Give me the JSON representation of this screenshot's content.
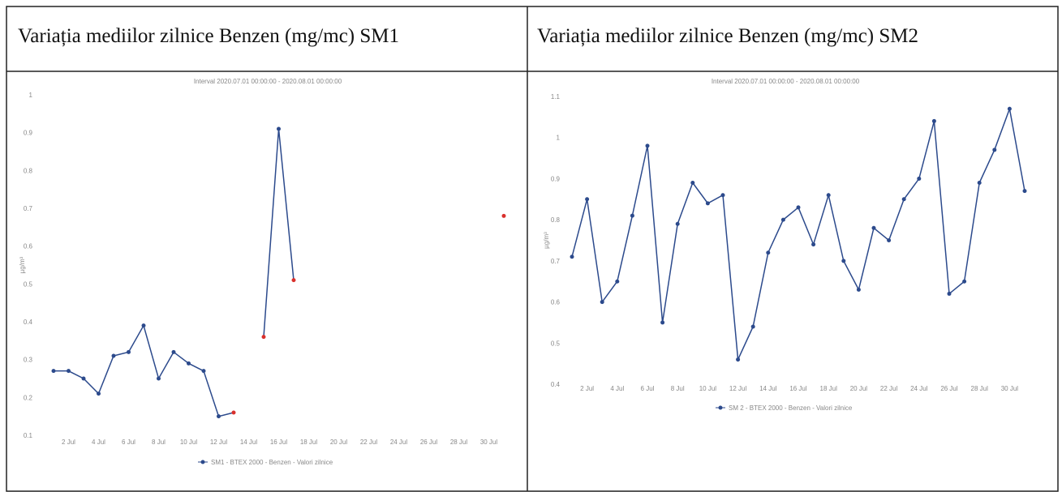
{
  "chart_data": [
    {
      "type": "line",
      "title": "Variația mediilor zilnice Benzen (mg/mc) SM1",
      "subtitle": "Interval 2020.07.01 00:00:00 - 2020.08.01 00:00:00",
      "ylabel": "µg/m³",
      "categories": [
        null,
        "2 Jul",
        null,
        "4 Jul",
        null,
        "6 Jul",
        null,
        "8 Jul",
        null,
        "10 Jul",
        null,
        "12 Jul",
        null,
        "14 Jul",
        null,
        "16 Jul",
        null,
        "18 Jul",
        null,
        "20 Jul",
        null,
        "22 Jul",
        null,
        "24 Jul",
        null,
        "26 Jul",
        null,
        "28 Jul",
        null,
        "30 Jul",
        null
      ],
      "series": [
        {
          "name": "SM1 - BTEX 2000 - Benzen - Valori zilnice",
          "color": "#2c4a8c",
          "values": [
            0.27,
            0.27,
            0.25,
            0.21,
            0.31,
            0.32,
            0.39,
            0.25,
            0.32,
            0.29,
            0.27,
            0.15,
            0.16,
            null,
            0.36,
            0.91,
            0.51,
            null,
            null,
            null,
            null,
            null,
            null,
            null,
            null,
            null,
            null,
            null,
            null,
            null,
            0.68
          ],
          "marker_colors": [
            "#2c4a8c",
            "#2c4a8c",
            "#2c4a8c",
            "#2c4a8c",
            "#2c4a8c",
            "#2c4a8c",
            "#2c4a8c",
            "#2c4a8c",
            "#2c4a8c",
            "#2c4a8c",
            "#2c4a8c",
            "#2c4a8c",
            "#d9302c",
            null,
            "#d9302c",
            "#2c4a8c",
            "#d9302c",
            null,
            null,
            null,
            null,
            null,
            null,
            null,
            null,
            null,
            null,
            null,
            null,
            null,
            "#d9302c"
          ]
        }
      ],
      "ylim": [
        0.1,
        1
      ],
      "yticks": [
        0.1,
        0.2,
        0.3,
        0.4,
        0.5,
        0.6,
        0.7,
        0.8,
        0.9,
        1
      ],
      "grid": false
    },
    {
      "type": "line",
      "title": "Variația mediilor zilnice Benzen (mg/mc) SM2",
      "subtitle": "Interval 2020.07.01 00:00:00 - 2020.08.01 00:00:00",
      "ylabel": "µg/m³",
      "categories": [
        null,
        "2 Jul",
        null,
        "4 Jul",
        null,
        "6 Jul",
        null,
        "8 Jul",
        null,
        "10 Jul",
        null,
        "12 Jul",
        null,
        "14 Jul",
        null,
        "16 Jul",
        null,
        "18 Jul",
        null,
        "20 Jul",
        null,
        "22 Jul",
        null,
        "24 Jul",
        null,
        "26 Jul",
        null,
        "28 Jul",
        null,
        "30 Jul",
        null
      ],
      "series": [
        {
          "name": "SM 2 - BTEX 2000 - Benzen - Valori zilnice",
          "color": "#2c4a8c",
          "values": [
            0.71,
            0.85,
            0.6,
            0.65,
            0.81,
            0.98,
            0.55,
            0.79,
            0.89,
            0.84,
            0.86,
            0.46,
            0.54,
            0.72,
            0.8,
            0.83,
            0.74,
            0.86,
            0.7,
            0.63,
            0.78,
            0.75,
            0.85,
            0.9,
            1.04,
            0.62,
            0.65,
            0.89,
            0.97,
            1.07,
            0.87
          ]
        }
      ],
      "ylim": [
        0.4,
        1.1
      ],
      "yticks": [
        0.4,
        0.5,
        0.6,
        0.7,
        0.8,
        0.9,
        1,
        1.1
      ],
      "grid": false
    }
  ]
}
